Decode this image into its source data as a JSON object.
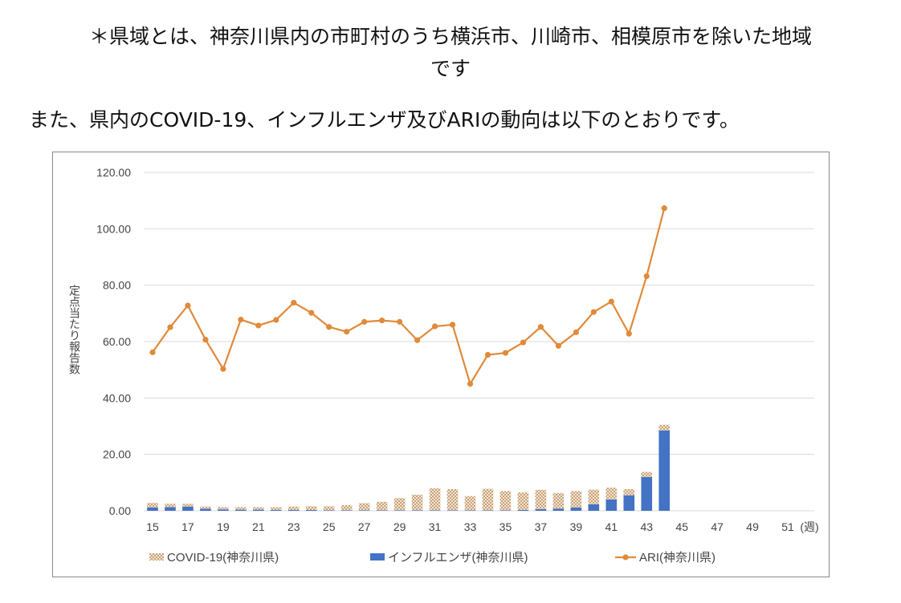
{
  "note": {
    "line1": "＊県域とは、神奈川県内の市町村のうち横浜市、川崎市、相模原市を除いた地域",
    "line2": "です"
  },
  "lead_text": "また、県内のCOVID-19、インフルエンザ及びARIの動向は以下のとおりです。",
  "colors": {
    "covid": "#d2b48c",
    "flu": "#4472c4",
    "ari": "#e08a3a",
    "grid": "#d9d9d9"
  },
  "chart_data": {
    "type": "bar",
    "ylabel": "定点当たり報告数",
    "x_unit_label": "(週)",
    "ylim": [
      0,
      120
    ],
    "y_ticks": [
      "0.00",
      "20.00",
      "40.00",
      "60.00",
      "80.00",
      "100.00",
      "120.00"
    ],
    "x_tick_labels": [
      "15",
      "17",
      "19",
      "21",
      "23",
      "25",
      "27",
      "29",
      "31",
      "33",
      "35",
      "37",
      "39",
      "41",
      "43",
      "45",
      "47",
      "49",
      "51"
    ],
    "weeks": [
      15,
      16,
      17,
      18,
      19,
      20,
      21,
      22,
      23,
      24,
      25,
      26,
      27,
      28,
      29,
      30,
      31,
      32,
      33,
      34,
      35,
      36,
      37,
      38,
      39,
      40,
      41,
      42,
      43,
      44,
      45,
      46,
      47,
      48,
      49,
      50,
      51,
      52
    ],
    "stacked": true,
    "series": [
      {
        "name": "インフルエンザ(神奈川県)",
        "kind": "bar",
        "values": [
          1.2,
          1.3,
          1.5,
          0.7,
          0.5,
          0.4,
          0.4,
          0.3,
          0.3,
          0.3,
          0.2,
          0.2,
          0.2,
          0.2,
          0.2,
          0.2,
          0.2,
          0.2,
          0.2,
          0.2,
          0.2,
          0.3,
          0.6,
          0.8,
          1.2,
          2.3,
          4.0,
          5.5,
          12.0,
          28.5,
          null,
          null,
          null,
          null,
          null,
          null,
          null,
          null
        ]
      },
      {
        "name": "COVID-19(神奈川県)",
        "kind": "bar",
        "values": [
          1.6,
          1.2,
          1.0,
          0.8,
          0.8,
          0.9,
          0.9,
          1.0,
          1.2,
          1.3,
          1.4,
          1.8,
          2.5,
          3.0,
          4.3,
          5.5,
          7.8,
          7.5,
          5.0,
          7.6,
          6.8,
          6.2,
          6.8,
          5.5,
          5.8,
          5.2,
          4.2,
          2.2,
          1.8,
          2.0,
          null,
          null,
          null,
          null,
          null,
          null,
          null,
          null
        ]
      },
      {
        "name": "ARI(神奈川県)",
        "kind": "line",
        "values": [
          56.2,
          65.1,
          72.8,
          60.7,
          50.3,
          67.8,
          65.7,
          67.7,
          73.8,
          70.2,
          65.2,
          63.5,
          67.0,
          67.5,
          67.0,
          60.5,
          65.4,
          66.0,
          45.0,
          55.3,
          56.0,
          59.7,
          65.2,
          58.5,
          63.3,
          70.5,
          74.2,
          62.8,
          83.2,
          107.3,
          null,
          null,
          null,
          null,
          null,
          null,
          null,
          null
        ]
      }
    ],
    "legend": {
      "position": "bottom",
      "items": [
        "COVID-19(神奈川県)",
        "インフルエンザ(神奈川県)",
        "ARI(神奈川県)"
      ]
    },
    "grid": true
  }
}
